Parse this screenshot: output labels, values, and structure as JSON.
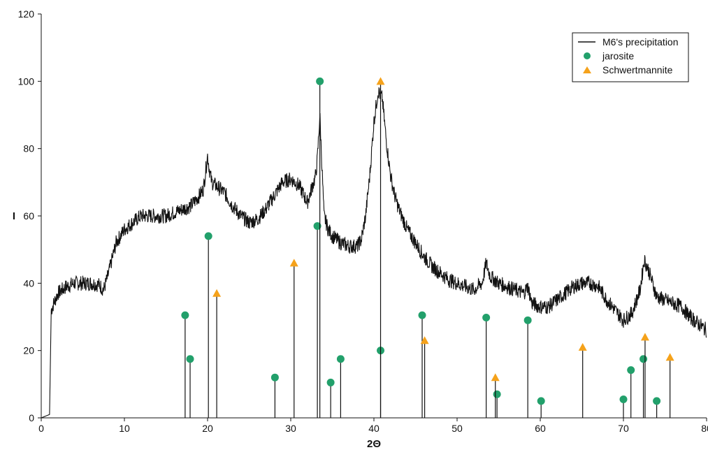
{
  "chart_data": {
    "type": "line",
    "title": "",
    "xlabel": "2Θ",
    "ylabel": "I",
    "xlim": [
      0,
      80
    ],
    "ylim": [
      0,
      120
    ],
    "xticks": [
      0,
      10,
      20,
      30,
      40,
      50,
      60,
      70,
      80
    ],
    "yticks": [
      0,
      20,
      40,
      60,
      80,
      100,
      120
    ],
    "grid": false,
    "legend_position": "top-right",
    "legend": [
      "M6's precipitation",
      "jarosite",
      "Schwertmannite"
    ],
    "colors": {
      "line": "#111111",
      "jarosite": "#22a06b",
      "schwertmannite": "#f5a21b",
      "stick": "#111111"
    },
    "series": [
      {
        "name": "M6's precipitation",
        "kind": "line",
        "x": [
          0,
          0.5,
          1.0,
          1.2,
          1.5,
          2.0,
          3.0,
          4.0,
          5.0,
          6.0,
          7.0,
          7.5,
          8.0,
          8.5,
          9.0,
          10.0,
          11.0,
          12.0,
          13.0,
          14.0,
          15.0,
          16.0,
          17.0,
          18.0,
          19.0,
          19.5,
          20.0,
          20.2,
          20.5,
          21.0,
          22.0,
          23.0,
          24.0,
          25.0,
          26.0,
          27.0,
          28.0,
          29.0,
          30.0,
          31.0,
          32.0,
          32.5,
          33.0,
          33.2,
          33.5,
          33.8,
          34.0,
          34.5,
          35.0,
          36.0,
          37.0,
          38.0,
          38.5,
          39.0,
          39.5,
          40.0,
          40.5,
          41.0,
          41.5,
          42.0,
          42.5,
          43.0,
          44.0,
          45.0,
          46.0,
          47.0,
          48.0,
          49.0,
          50.0,
          51.0,
          52.0,
          53.0,
          53.5,
          54.0,
          55.0,
          56.0,
          57.0,
          58.0,
          58.5,
          59.0,
          60.0,
          61.0,
          62.0,
          63.0,
          64.0,
          65.0,
          66.0,
          67.0,
          68.0,
          69.0,
          70.0,
          71.0,
          72.0,
          72.5,
          73.0,
          74.0,
          75.0,
          76.0,
          77.0,
          78.0,
          79.0,
          80.0
        ],
        "y": [
          0,
          0.5,
          1,
          32,
          34,
          37,
          39,
          40,
          40,
          40,
          39.5,
          38,
          42,
          47,
          52,
          56,
          58,
          60,
          60,
          60,
          60,
          61,
          62,
          63,
          66,
          68,
          78,
          74,
          70,
          69,
          67,
          63,
          60,
          58,
          59,
          62,
          66,
          70,
          71,
          69,
          64,
          68,
          72,
          77,
          90,
          72,
          60,
          56,
          54,
          52,
          51,
          51,
          53,
          60,
          72,
          88,
          97,
          95,
          82,
          72,
          66,
          62,
          56,
          52,
          48,
          45,
          43,
          41,
          40,
          39,
          38,
          40,
          46,
          42,
          40,
          39,
          38,
          37,
          39,
          34,
          33,
          33,
          35,
          37,
          39,
          40,
          40,
          39,
          35,
          32,
          29,
          31,
          38,
          47,
          44,
          36,
          35,
          34,
          33,
          30,
          28,
          26
        ]
      },
      {
        "name": "jarosite",
        "kind": "stick",
        "x": [
          17.3,
          17.9,
          20.1,
          28.1,
          33.2,
          33.5,
          34.8,
          36.0,
          40.8,
          45.8,
          53.5,
          54.8,
          58.5,
          60.1,
          70.0,
          70.9,
          72.4,
          74.0
        ],
        "y": [
          30.5,
          17.5,
          54,
          12,
          57,
          100,
          10.5,
          17.5,
          20,
          30.5,
          29.8,
          7,
          29,
          5,
          5.5,
          14.2,
          17.5,
          5
        ]
      },
      {
        "name": "Schwertmannite",
        "kind": "stick",
        "x": [
          21.1,
          30.4,
          40.8,
          46.1,
          54.6,
          65.1,
          72.6,
          75.6
        ],
        "y": [
          37,
          46,
          100,
          23,
          12,
          21,
          24,
          18
        ]
      }
    ]
  }
}
